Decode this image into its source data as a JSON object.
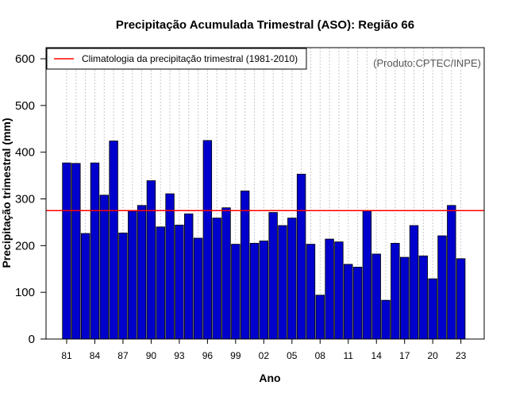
{
  "chart_data": {
    "type": "bar",
    "title": "Precipitação Acumulada Trimestral (ASO): Região 66",
    "xlabel": "Ano",
    "ylabel": "Precipitação trimestral (mm)",
    "ylim": [
      0,
      600
    ],
    "yticks": [
      0,
      100,
      200,
      300,
      400,
      500,
      600
    ],
    "xtick_labels": [
      "81",
      "84",
      "87",
      "90",
      "93",
      "96",
      "99",
      "02",
      "05",
      "08",
      "11",
      "14",
      "17",
      "20",
      "23"
    ],
    "categories": [
      "1981",
      "1982",
      "1983",
      "1984",
      "1985",
      "1986",
      "1987",
      "1988",
      "1989",
      "1990",
      "1991",
      "1992",
      "1993",
      "1994",
      "1995",
      "1996",
      "1997",
      "1998",
      "1999",
      "2000",
      "2001",
      "2002",
      "2003",
      "2004",
      "2005",
      "2006",
      "2007",
      "2008",
      "2009",
      "2010",
      "2011",
      "2012",
      "2013",
      "2014",
      "2015",
      "2016",
      "2017",
      "2018",
      "2019",
      "2020",
      "2021",
      "2022",
      "2023"
    ],
    "values": [
      377,
      376,
      226,
      377,
      308,
      424,
      227,
      274,
      286,
      339,
      240,
      311,
      244,
      268,
      216,
      425,
      259,
      281,
      203,
      317,
      205,
      210,
      271,
      243,
      259,
      353,
      203,
      94,
      214,
      208,
      160,
      154,
      274,
      182,
      83,
      205,
      175,
      243,
      178,
      129,
      221,
      286,
      172
    ],
    "bar_color": "#0000cc",
    "climatology": {
      "value": 275,
      "label": "Climatologia da precipitação trimestral (1981-2010)",
      "color": "#ff0000"
    },
    "legend_position": "top-left",
    "credit": "(Produto:CPTEC/INPE)",
    "grid": "vertical dotted"
  }
}
